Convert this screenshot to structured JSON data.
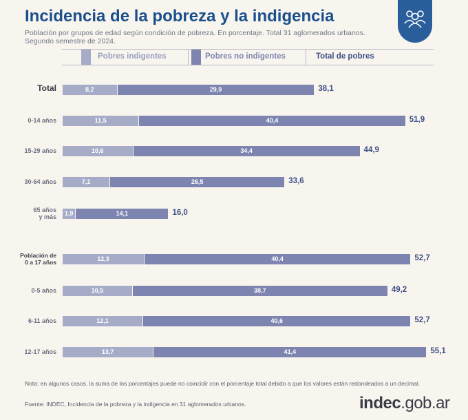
{
  "header": {
    "title": "Incidencia de la pobreza y la indigencia",
    "subtitle": "Población por grupos de edad según condición de pobreza. En porcentaje. Total 31 aglomerados urbanos. Segundo semestre de 2024.",
    "logo_icon": "people-group-icon"
  },
  "legend": {
    "indigent_label": "Pobres indigentes",
    "non_indigent_label": "Pobres no indigentes",
    "total_label": "Total de pobres"
  },
  "colors": {
    "indigent": "#a6acc8",
    "non_indigent": "#7d84b0",
    "total_text": "#3e4e86",
    "title": "#1b4f8c"
  },
  "chart_data": {
    "type": "bar",
    "orientation": "horizontal",
    "stacked": true,
    "categories": [
      "Total",
      "0-14 años",
      "15-29 años",
      "30-64 años",
      "65 años\ny más",
      "Población de\n0 a 17 años",
      "0-5 años",
      "6-11 años",
      "12-17 años"
    ],
    "series": [
      {
        "name": "Pobres indigentes",
        "values": [
          8.2,
          11.5,
          10.6,
          7.1,
          1.9,
          12.3,
          10.5,
          12.1,
          13.7
        ]
      },
      {
        "name": "Pobres no indigentes",
        "values": [
          29.9,
          40.4,
          34.4,
          26.5,
          14.1,
          40.4,
          38.7,
          40.6,
          41.4
        ]
      }
    ],
    "totals": {
      "name": "Total de pobres",
      "values": [
        38.1,
        51.9,
        44.9,
        33.6,
        16.0,
        52.7,
        49.2,
        52.7,
        55.1
      ]
    },
    "value_labels": {
      "indigent": [
        "8,2",
        "11,5",
        "10,6",
        "7,1",
        "1,9",
        "12,3",
        "10,5",
        "12,1",
        "13,7"
      ],
      "non_indigent": [
        "29,9",
        "40,4",
        "34,4",
        "26,5",
        "14,1",
        "40,4",
        "38,7",
        "40,6",
        "41,4"
      ],
      "total": [
        "38,1",
        "51,9",
        "44,9",
        "33,6",
        "16,0",
        "52,7",
        "49,2",
        "52,7",
        "55,1"
      ]
    },
    "xlim": [
      0,
      55.1
    ],
    "grid": false,
    "legend_position": "top"
  },
  "footer": {
    "note": "Nota: en algunos casos, la suma de los porcentajes puede no coincidir con el porcentaje total debido a que los valores están redondeados a un decimal.",
    "source": "Fuente: INDEC, Incidencia de la pobreza y la indigencia en 31 aglomerados urbanos.",
    "brand_strong": "indec",
    "brand_rest": ".gob.ar"
  }
}
